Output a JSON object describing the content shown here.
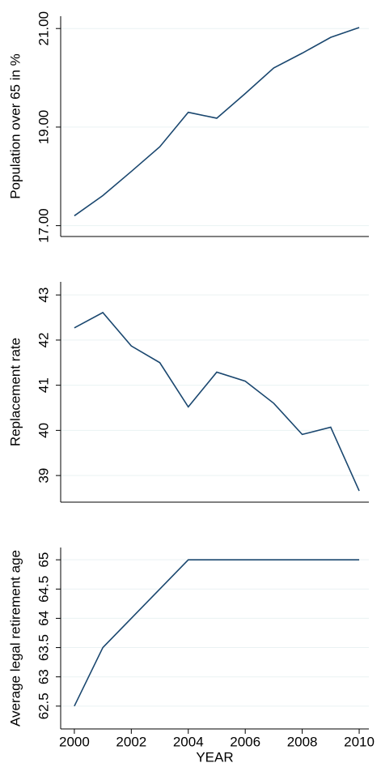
{
  "chart_data": [
    {
      "type": "line",
      "y_label": "Population over 65 in %",
      "x": [
        2000,
        2001,
        2002,
        2003,
        2004,
        2005,
        2006,
        2007,
        2008,
        2009,
        2010
      ],
      "values": [
        17.2,
        17.61,
        18.1,
        18.6,
        19.3,
        19.18,
        19.68,
        20.2,
        20.5,
        20.82,
        21.02
      ],
      "color": "#1a476f",
      "xlim": [
        1999.52,
        2010.34
      ],
      "ylim": [
        16.78,
        21.25
      ],
      "yticks": [
        {
          "value": 17,
          "label": "17.00"
        },
        {
          "value": 19,
          "label": "19.00"
        },
        {
          "value": 21,
          "label": "21.00"
        }
      ],
      "grid": true
    },
    {
      "type": "line",
      "y_label": "Replacement rate",
      "x": [
        2000,
        2001,
        2002,
        2003,
        2004,
        2005,
        2006,
        2007,
        2008,
        2009,
        2010
      ],
      "values": [
        42.27,
        42.61,
        41.87,
        41.5,
        40.52,
        41.29,
        41.09,
        40.6,
        39.91,
        40.07,
        38.66
      ],
      "color": "#1a476f",
      "xlim": [
        1999.52,
        2010.34
      ],
      "ylim": [
        38.41,
        43.29
      ],
      "yticks": [
        39,
        40,
        41,
        42,
        43
      ],
      "grid": true
    },
    {
      "type": "line",
      "y_label": "Average legal retirement age",
      "x_label": "YEAR",
      "x": [
        2000,
        2001,
        2002,
        2003,
        2004,
        2005,
        2006,
        2007,
        2008,
        2009,
        2010
      ],
      "values": [
        62.5,
        63.5,
        64,
        64.5,
        65,
        65,
        65,
        65,
        65,
        65,
        65
      ],
      "color": "#1a476f",
      "xlim": [
        1999.52,
        2010.34
      ],
      "ylim": [
        62.11,
        65.21
      ],
      "yticks": [
        62.5,
        63,
        63.5,
        64,
        64.5,
        65
      ],
      "xticks": [
        2000,
        2002,
        2004,
        2006,
        2008,
        2010
      ],
      "grid": true
    }
  ]
}
